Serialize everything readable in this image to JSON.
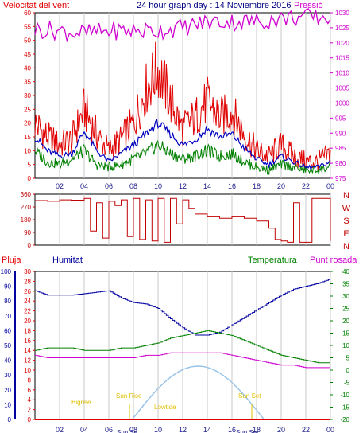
{
  "header": {
    "left": "Velocitat del vent",
    "title": "24 hour graph day : 14 Noviembre 2016",
    "right": "Pressió"
  },
  "colors": {
    "wind_speed": "#e00000",
    "wind_avg": "#0000c0",
    "wind_base": "#008000",
    "pressure": "#d000d0",
    "direction": "#c00000",
    "humidity": "#0000a0",
    "temperature": "#008000",
    "dewpoint": "#d000d0",
    "rain": "#e00000",
    "sun": "#99c4ea",
    "astro": "#e0c000",
    "grid_time": "#1a1a8a"
  },
  "chart_data": [
    {
      "type": "line",
      "name": "wind-and-pressure",
      "x_ticks": [
        "02",
        "04",
        "06",
        "08",
        "10",
        "12",
        "14",
        "16",
        "18",
        "20",
        "22",
        "00"
      ],
      "y_left_ticks": [
        "0",
        "5",
        "10",
        "15",
        "20",
        "25",
        "30",
        "35",
        "40",
        "45",
        "50",
        "55",
        "60"
      ],
      "y_left_range": [
        0,
        60
      ],
      "y_right_ticks": [
        "975",
        "980",
        "985",
        "990",
        "995",
        "1000",
        "1005",
        "1010",
        "1015",
        "1020",
        "1025",
        "1030"
      ],
      "y_right_range": [
        975,
        1030
      ],
      "hours": [
        0,
        1,
        2,
        3,
        4,
        5,
        6,
        7,
        8,
        9,
        10,
        11,
        12,
        13,
        14,
        15,
        16,
        17,
        18,
        19,
        20,
        21,
        22,
        23,
        24
      ],
      "series": [
        {
          "key": "gust",
          "values": [
            20,
            15,
            12,
            14,
            25,
            16,
            10,
            14,
            20,
            32,
            40,
            28,
            18,
            22,
            28,
            22,
            24,
            16,
            10,
            8,
            12,
            8,
            6,
            6,
            9
          ]
        },
        {
          "key": "avg",
          "values": [
            15,
            10,
            8,
            9,
            17,
            10,
            6,
            9,
            12,
            16,
            20,
            16,
            12,
            14,
            18,
            15,
            16,
            11,
            7,
            5,
            8,
            6,
            4,
            4,
            6
          ]
        },
        {
          "key": "base",
          "values": [
            10,
            6,
            5,
            7,
            10,
            5,
            4,
            5,
            7,
            9,
            12,
            9,
            7,
            8,
            10,
            8,
            9,
            6,
            4,
            3,
            5,
            4,
            3,
            3,
            4
          ]
        },
        {
          "key": "pressure",
          "values": [
            1024.5,
            1024.3,
            1024,
            1023.5,
            1023.2,
            1023.5,
            1024,
            1024,
            1024,
            1024,
            1024,
            1024.5,
            1025,
            1026,
            1027,
            1027,
            1027,
            1027,
            1027,
            1027.5,
            1028,
            1028.5,
            1028.5,
            1028.5,
            1028.5
          ]
        }
      ]
    },
    {
      "type": "line",
      "name": "wind-direction",
      "y_left_ticks": [
        "0",
        "90",
        "180",
        "270",
        "360"
      ],
      "y_range": [
        0,
        360
      ],
      "y_right_labels": [
        "N",
        "W",
        "S",
        "E",
        "N"
      ],
      "hours": [
        0,
        1,
        2,
        3,
        4,
        4.5,
        5,
        5.5,
        6,
        6.5,
        7,
        7.5,
        8,
        8.5,
        9,
        9.5,
        10,
        10.5,
        11,
        11.5,
        12,
        12.5,
        13,
        14,
        15,
        16,
        17,
        18,
        19,
        19.5,
        20,
        20.5,
        21,
        21.5,
        22,
        22.5,
        23,
        24
      ],
      "values": [
        315,
        310,
        320,
        318,
        330,
        100,
        300,
        50,
        310,
        280,
        320,
        60,
        330,
        40,
        320,
        30,
        330,
        20,
        330,
        150,
        320,
        260,
        220,
        200,
        190,
        200,
        190,
        170,
        120,
        40,
        30,
        20,
        300,
        20,
        20,
        330,
        330,
        30
      ]
    },
    {
      "type": "line",
      "name": "humidity-temp-rain-sun",
      "labels": {
        "rain": "Pluja",
        "humidity": "Humitat",
        "temperature": "Temperatura",
        "dewpoint": "Punt rosada"
      },
      "y_humidity_ticks": [
        "0",
        "10",
        "20",
        "30",
        "40",
        "50",
        "60",
        "70",
        "80",
        "90",
        "100"
      ],
      "y_rain_ticks": [
        "0",
        "2",
        "4",
        "6",
        "8",
        "10",
        "12",
        "14",
        "16",
        "18",
        "20",
        "22",
        "24",
        "26",
        "28",
        "30"
      ],
      "y_temp_ticks": [
        "-20",
        "-15",
        "-10",
        "-5",
        "0",
        "5",
        "10",
        "15",
        "20",
        "25",
        "30",
        "35",
        "40"
      ],
      "hours": [
        0,
        1,
        2,
        3,
        4,
        5,
        6,
        7,
        8,
        9,
        10,
        11,
        12,
        13,
        14,
        15,
        16,
        17,
        18,
        19,
        20,
        21,
        22,
        23,
        24
      ],
      "series": [
        {
          "key": "humidity",
          "values": [
            87,
            84,
            84,
            84,
            85,
            86,
            87,
            82,
            79,
            78,
            75,
            68,
            62,
            57,
            57,
            59,
            64,
            69,
            74,
            79,
            84,
            88,
            90,
            92,
            95
          ]
        },
        {
          "key": "temperature",
          "values": [
            8,
            9,
            9,
            9,
            8,
            8,
            8,
            9,
            9,
            10,
            11,
            13,
            14,
            15,
            16,
            15,
            14,
            12,
            10,
            8,
            6,
            5,
            4,
            3,
            3
          ]
        },
        {
          "key": "dewpoint",
          "values": [
            6,
            5,
            5,
            5,
            5,
            5,
            5,
            5,
            5,
            6,
            6,
            7,
            7,
            7,
            7,
            7,
            6,
            5,
            4,
            3,
            2,
            2,
            1,
            1,
            1
          ]
        },
        {
          "key": "rain",
          "values": [
            0,
            0,
            0,
            0,
            0,
            0,
            0,
            0,
            0,
            0,
            0,
            0,
            0,
            0,
            0,
            0,
            0,
            0,
            0,
            0,
            0,
            0,
            0,
            0,
            0
          ]
        }
      ],
      "sun_curve": {
        "rise_hour": 7.9,
        "set_hour": 18.6,
        "peak_hour": 13.2
      },
      "astro_labels": {
        "bigrise": "Bigrise",
        "sunrise": "Sun Rise",
        "lowtide": "Lowtide",
        "sunset": "Sun Set",
        "sun_se": "Sun Se",
        "sun_set_bottom": "Sun Set"
      }
    }
  ]
}
